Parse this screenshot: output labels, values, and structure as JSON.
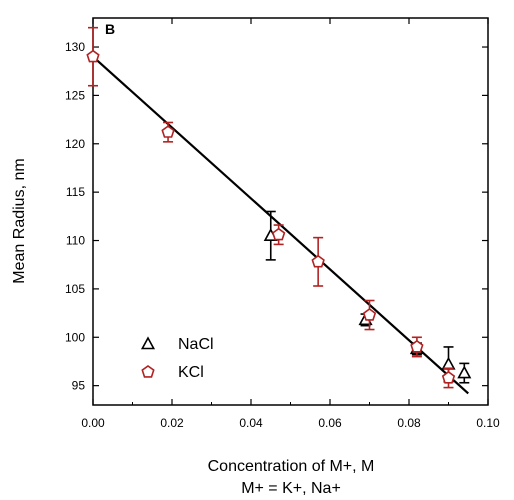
{
  "chart_data": {
    "type": "scatter",
    "panel_label": "B",
    "xlabel": "Concentration of M+, M",
    "ylabel": "Mean Radius, nm",
    "caption": "M+ = K+, Na+",
    "xlim": [
      0,
      0.1
    ],
    "ylim": [
      93,
      133
    ],
    "x_ticks": [
      "0.00",
      "0.02",
      "0.04",
      "0.06",
      "0.08",
      "0.10"
    ],
    "y_ticks": [
      "95",
      "100",
      "105",
      "110",
      "115",
      "120",
      "125",
      "130"
    ],
    "legend_position": "bottom-left",
    "grid": false,
    "series": [
      {
        "name": "NaCl",
        "marker": "triangle",
        "color": "#000000",
        "points": [
          {
            "x": 0.045,
            "y": 110.5,
            "err": 2.5
          },
          {
            "x": 0.069,
            "y": 101.8,
            "err": 0.6
          },
          {
            "x": 0.082,
            "y": 98.8,
            "err": 0.6
          },
          {
            "x": 0.09,
            "y": 97.2,
            "err": 1.8
          },
          {
            "x": 0.094,
            "y": 96.3,
            "err": 1.0
          }
        ]
      },
      {
        "name": "KCl",
        "marker": "pentagon",
        "color": "#b22222",
        "points": [
          {
            "x": 0.0,
            "y": 129.0,
            "err": 3.0
          },
          {
            "x": 0.019,
            "y": 121.2,
            "err": 1.0
          },
          {
            "x": 0.047,
            "y": 110.6,
            "err": 1.0
          },
          {
            "x": 0.057,
            "y": 107.8,
            "err": 2.5
          },
          {
            "x": 0.07,
            "y": 102.3,
            "err": 1.5
          },
          {
            "x": 0.082,
            "y": 99.0,
            "err": 1.0
          },
          {
            "x": 0.09,
            "y": 95.8,
            "err": 1.0
          }
        ]
      }
    ],
    "fit_line": {
      "x": [
        0.0,
        0.095
      ],
      "y": [
        129.0,
        94.2
      ],
      "color": "#000000"
    }
  }
}
